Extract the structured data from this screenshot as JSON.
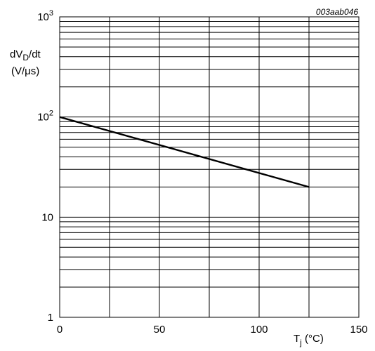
{
  "chart_data": {
    "type": "line",
    "figure_id": "003aab046",
    "ylabel": {
      "line1": {
        "base": "dV",
        "sub": "D",
        "tail": "/dt"
      },
      "line2": "(V/μs)"
    },
    "xlabel": {
      "base": "T",
      "sub": "j",
      "tail": " (°C)"
    },
    "xlim": [
      0,
      150
    ],
    "ylim": [
      1,
      1000
    ],
    "yscale": "log",
    "grid": true,
    "x_ticks": [
      {
        "value": 0,
        "label": "0"
      },
      {
        "value": 50,
        "label": "50"
      },
      {
        "value": 100,
        "label": "100"
      },
      {
        "value": 150,
        "label": "150"
      }
    ],
    "y_ticks": [
      {
        "value": 1,
        "label": "1",
        "sup": ""
      },
      {
        "value": 10,
        "label": "10",
        "sup": ""
      },
      {
        "value": 100,
        "label": "10",
        "sup": "2"
      },
      {
        "value": 1000,
        "label": "10",
        "sup": "3"
      }
    ],
    "series": [
      {
        "x": [
          0,
          125
        ],
        "y": [
          100,
          20
        ]
      }
    ]
  }
}
